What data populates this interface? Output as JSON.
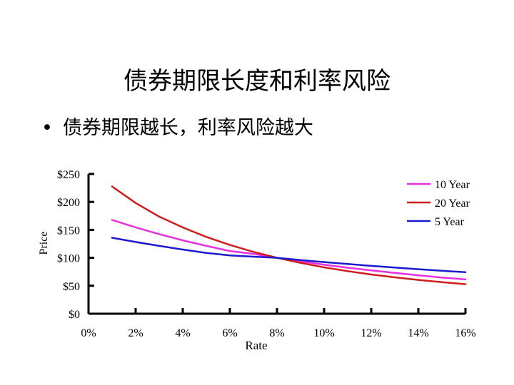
{
  "slide": {
    "title": "债券期限长度和利率风险",
    "bullet_symbol": "•",
    "bullet_text": "债券期限越长，利率风险越大"
  },
  "chart_data": {
    "type": "line",
    "title": "",
    "xlabel": "Rate",
    "ylabel": "Price",
    "xlim": [
      0,
      16
    ],
    "ylim": [
      0,
      250
    ],
    "x_ticks": [
      0,
      2,
      4,
      6,
      8,
      10,
      12,
      14,
      16
    ],
    "x_tick_labels": [
      "0%",
      "2%",
      "4%",
      "6%",
      "8%",
      "10%",
      "12%",
      "14%",
      "16%"
    ],
    "y_ticks": [
      0,
      50,
      100,
      150,
      200,
      250
    ],
    "y_tick_labels": [
      "$0",
      "$50",
      "$100",
      "$150",
      "$200",
      "$250"
    ],
    "grid": false,
    "legend_position": "top-right",
    "x": [
      1,
      2,
      3,
      4,
      5,
      6,
      7,
      8,
      9,
      10,
      11,
      12,
      13,
      14,
      15,
      16
    ],
    "series": [
      {
        "name": "10 Year",
        "color": "#e830e0",
        "values": [
          167.8,
          154.5,
          142.3,
          131.3,
          121.3,
          112.1,
          107.0,
          100.0,
          93.6,
          87.7,
          82.3,
          77.4,
          72.9,
          68.7,
          64.8,
          61.3
        ]
      },
      {
        "name": "20 Year",
        "color": "#d01c1c",
        "values": [
          227.6,
          198.1,
          173.6,
          154.4,
          137.4,
          123.0,
          110.6,
          100.0,
          90.9,
          82.9,
          76.1,
          70.1,
          65.0,
          60.4,
          56.4,
          52.8
        ]
      },
      {
        "name": "5 Year",
        "color": "#1a1ad0",
        "values": [
          135.8,
          128.3,
          121.3,
          114.8,
          108.8,
          104.2,
          102.0,
          100.0,
          96.1,
          92.4,
          88.9,
          85.6,
          82.5,
          79.6,
          76.8,
          74.2
        ]
      }
    ]
  }
}
